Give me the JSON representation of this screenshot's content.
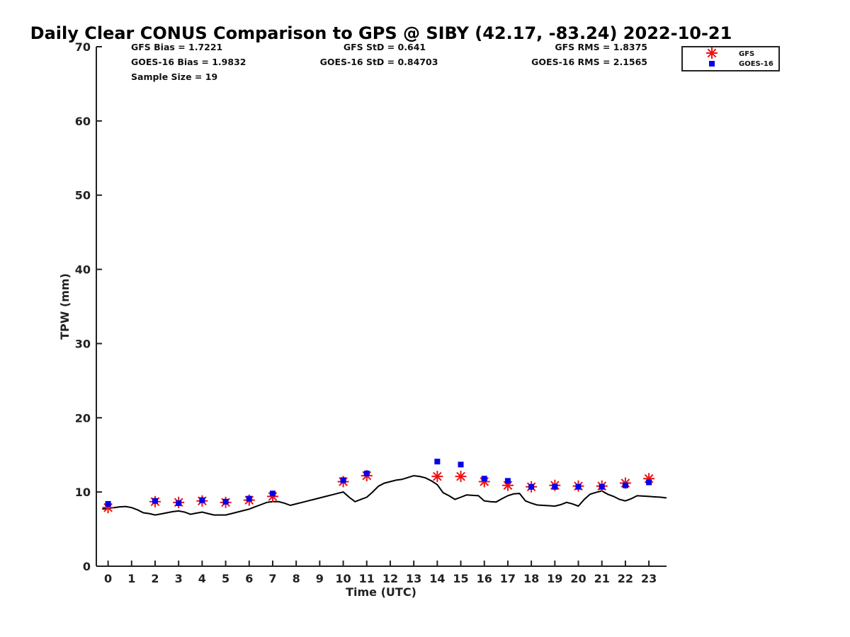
{
  "chart_data": {
    "type": "scatter",
    "title": "Daily Clear CONUS Comparison to GPS @ SIBY (42.17, -83.24) 2022-10-21",
    "xlabel": "Time (UTC)",
    "ylabel": "TPW (mm)",
    "xlim": [
      -0.5,
      23.75
    ],
    "ylim": [
      0,
      70
    ],
    "xticks": [
      0,
      1,
      2,
      3,
      4,
      5,
      6,
      7,
      8,
      9,
      10,
      11,
      12,
      13,
      14,
      15,
      16,
      17,
      18,
      19,
      20,
      21,
      22,
      23
    ],
    "yticks": [
      0,
      10,
      20,
      30,
      40,
      50,
      60,
      70
    ],
    "grid": false,
    "legend_position": "top-right",
    "stats": {
      "gfs_bias": "GFS Bias = 1.7221",
      "goes_bias": "GOES-16 Bias = 1.9832",
      "sample_size": "Sample Size = 19",
      "gfs_std": "GFS StD = 0.641",
      "goes_std": "GOES-16 StD = 0.84703",
      "gfs_rms": "GFS RMS = 1.8375",
      "goes_rms": "GOES-16 RMS = 2.1565"
    },
    "gps_line": {
      "color": "#000000",
      "x": [
        -0.25,
        0,
        0.25,
        0.5,
        0.75,
        1,
        1.25,
        1.5,
        1.75,
        2,
        2.25,
        2.5,
        2.75,
        3,
        3.25,
        3.5,
        3.75,
        4,
        4.25,
        4.5,
        4.75,
        5,
        5.25,
        5.5,
        5.75,
        6,
        6.25,
        6.5,
        6.75,
        7,
        7.25,
        7.5,
        7.75,
        8,
        8.25,
        8.5,
        8.75,
        9,
        9.25,
        9.5,
        9.75,
        10,
        10.25,
        10.5,
        10.75,
        11,
        11.25,
        11.5,
        11.75,
        12,
        12.25,
        12.5,
        12.75,
        13,
        13.25,
        13.5,
        13.75,
        14,
        14.25,
        14.5,
        14.75,
        15,
        15.25,
        15.5,
        15.75,
        16,
        16.25,
        16.5,
        16.75,
        17,
        17.25,
        17.5,
        17.75,
        18,
        18.25,
        18.5,
        18.75,
        19,
        19.25,
        19.5,
        19.75,
        20,
        20.25,
        20.5,
        20.75,
        21,
        21.25,
        21.5,
        21.75,
        22,
        22.25,
        22.5,
        22.75,
        23,
        23.25,
        23.5,
        23.75
      ],
      "y": [
        7.7,
        7.8,
        7.9,
        8.0,
        8.05,
        7.9,
        7.6,
        7.2,
        7.1,
        6.9,
        7.05,
        7.2,
        7.35,
        7.45,
        7.3,
        7.0,
        7.15,
        7.3,
        7.1,
        6.9,
        6.9,
        6.9,
        7.1,
        7.3,
        7.5,
        7.7,
        8.0,
        8.3,
        8.6,
        8.7,
        8.7,
        8.5,
        8.2,
        8.4,
        8.6,
        8.8,
        9.0,
        9.2,
        9.4,
        9.6,
        9.8,
        10.0,
        9.3,
        8.7,
        9.0,
        9.3,
        10.0,
        10.8,
        11.2,
        11.4,
        11.6,
        11.7,
        11.95,
        12.2,
        12.1,
        11.9,
        11.5,
        11.0,
        9.9,
        9.5,
        9.0,
        9.3,
        9.6,
        9.55,
        9.5,
        8.8,
        8.7,
        8.65,
        9.1,
        9.5,
        9.75,
        9.8,
        8.8,
        8.5,
        8.25,
        8.2,
        8.15,
        8.1,
        8.3,
        8.6,
        8.4,
        8.1,
        9.0,
        9.7,
        9.95,
        10.15,
        9.7,
        9.4,
        9.0,
        8.8,
        9.1,
        9.5,
        9.45,
        9.4,
        9.35,
        9.3,
        9.2
      ]
    },
    "series": [
      {
        "name": "GFS",
        "color": "#ee1111",
        "marker": "asterisk",
        "x": [
          0,
          2,
          3,
          4,
          5,
          6,
          7,
          10,
          11,
          14,
          15,
          16,
          17,
          18,
          19,
          20,
          21,
          22,
          23
        ],
        "y": [
          7.9,
          8.7,
          8.6,
          8.8,
          8.6,
          8.9,
          9.4,
          11.4,
          12.2,
          12.1,
          12.1,
          11.4,
          10.9,
          10.7,
          10.9,
          10.8,
          10.8,
          11.2,
          11.8
        ]
      },
      {
        "name": "GOES-16",
        "color": "#0000ee",
        "marker": "square",
        "x": [
          0,
          2,
          3,
          4,
          5,
          6,
          7,
          10,
          11,
          14,
          15,
          16,
          17,
          18,
          19,
          20,
          21,
          22,
          23
        ],
        "y": [
          8.4,
          8.8,
          8.5,
          8.9,
          8.7,
          9.1,
          9.8,
          11.6,
          12.5,
          14.1,
          13.7,
          11.8,
          11.5,
          10.7,
          10.7,
          10.7,
          10.7,
          10.9,
          11.3
        ]
      }
    ]
  }
}
